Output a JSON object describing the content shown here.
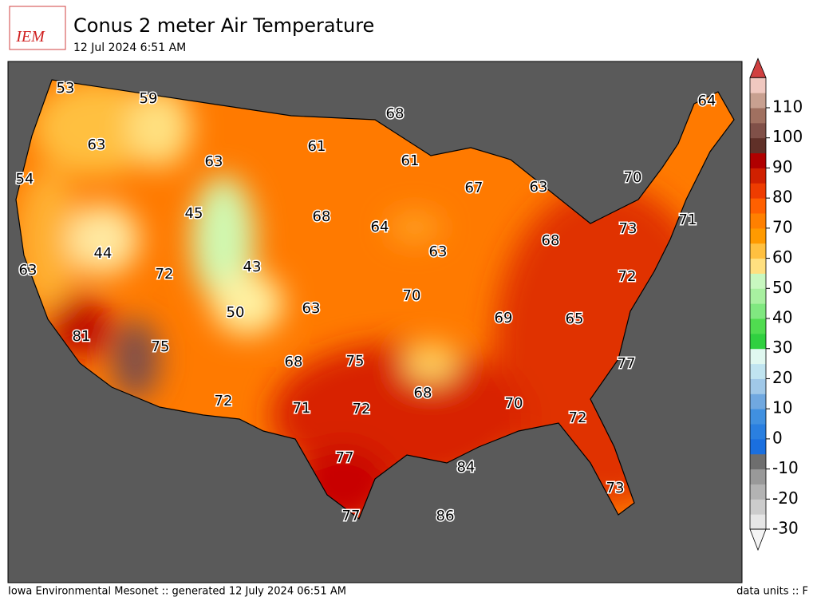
{
  "header": {
    "title": "Conus 2 meter Air Temperature",
    "subtitle": "12 Jul 2024 6:51 AM",
    "logo": "IEM"
  },
  "map": {
    "station_values": [
      53,
      59,
      68,
      64,
      63,
      61,
      61,
      63,
      54,
      67,
      63,
      70,
      45,
      68,
      64,
      71,
      73,
      44,
      63,
      68,
      63,
      72,
      43,
      72,
      70,
      63,
      50,
      69,
      65,
      81,
      75,
      75,
      68,
      77,
      68,
      72,
      70,
      71,
      72,
      72,
      77,
      84,
      73,
      77,
      86
    ]
  },
  "colorbar": {
    "range": [
      -30,
      120
    ],
    "ticks": [
      -30,
      -20,
      -10,
      0,
      10,
      20,
      30,
      40,
      50,
      60,
      70,
      80,
      90,
      100,
      110
    ],
    "colors": [
      "#e6e6e6",
      "#cccccc",
      "#b3b3b3",
      "#999999",
      "#6e6e6e",
      "#1a6fdf",
      "#2a7fe0",
      "#4090e0",
      "#70a8e0",
      "#a0c8e8",
      "#c0e4f0",
      "#e0f8f0",
      "#30d040",
      "#50dc50",
      "#80e880",
      "#a8f0a0",
      "#c8f8c0",
      "#ffe080",
      "#ffc040",
      "#ff9a00",
      "#ff8000",
      "#ff6000",
      "#ee3c00",
      "#d02000",
      "#b00000",
      "#603028",
      "#805048",
      "#a07060",
      "#c8a090",
      "#f0c8c0"
    ],
    "top_color": "#d04040",
    "bottom_color": "#f4f4f4"
  },
  "footer": {
    "left": "Iowa Environmental Mesonet :: generated 12 July 2024 06:51 AM",
    "right": "data units :: F"
  }
}
